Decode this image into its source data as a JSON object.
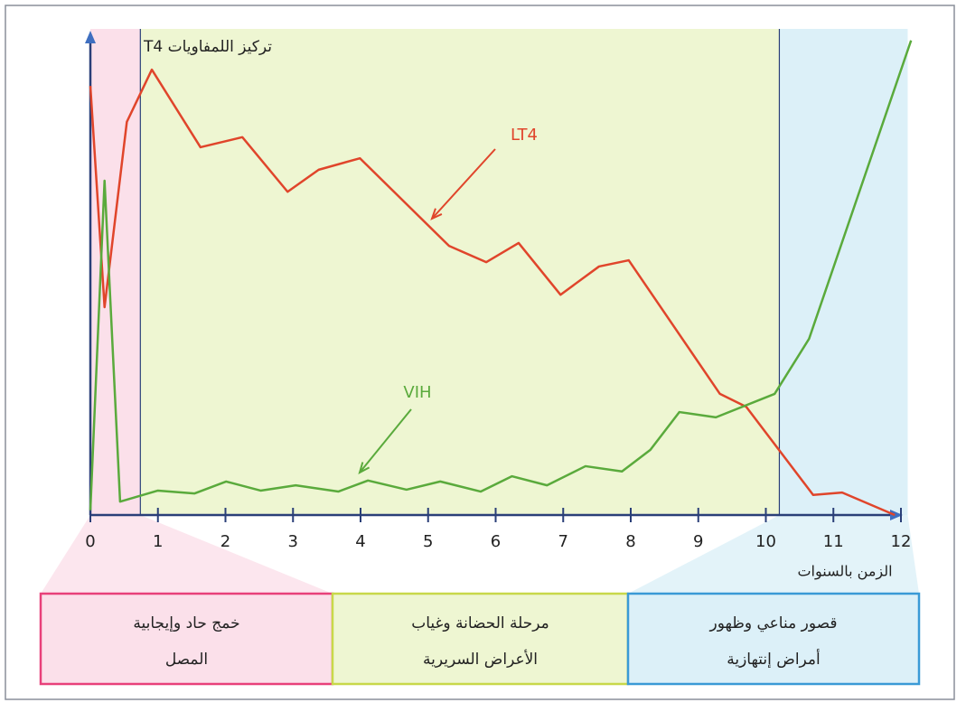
{
  "chart_data": {
    "type": "line",
    "y_label": "تركيز اللمفاويات T4",
    "x_label": "الزمن بالسنوات",
    "xlim": [
      0,
      12
    ],
    "ylim": [
      0,
      100
    ],
    "xticks": [
      0,
      1,
      2,
      3,
      4,
      5,
      6,
      7,
      8,
      9,
      10,
      11,
      12
    ],
    "series": [
      {
        "name": "LT4",
        "color": "#e0452b",
        "x": [
          0,
          0.21,
          0.54,
          0.91,
          1.63,
          2.25,
          2.92,
          3.38,
          3.99,
          5.31,
          5.86,
          6.34,
          6.96,
          7.53,
          7.97,
          9.32,
          9.71,
          10.7,
          11.13,
          11.91
        ],
        "values": [
          89.6,
          43.4,
          82.1,
          93.0,
          76.8,
          78.9,
          67.5,
          72.1,
          74.5,
          56.2,
          52.8,
          56.8,
          46.0,
          51.9,
          53.2,
          25.3,
          22.6,
          4.2,
          4.7,
          0
        ]
      },
      {
        "name": "VIH",
        "color": "#5aaa3c",
        "x": [
          0,
          0.21,
          0.44,
          1.0,
          1.54,
          2.01,
          2.52,
          3.04,
          3.67,
          4.11,
          4.68,
          5.18,
          5.78,
          6.24,
          6.76,
          7.33,
          7.87,
          8.29,
          8.72,
          9.26,
          10.13,
          10.64,
          12.15
        ],
        "values": [
          1,
          69.8,
          2.8,
          5.1,
          4.5,
          7.0,
          5.1,
          6.2,
          4.9,
          7.2,
          5.3,
          7.0,
          4.9,
          8.1,
          6.2,
          10.2,
          9.1,
          13.6,
          21.5,
          20.4,
          25.3,
          36.8,
          99.1
        ]
      }
    ],
    "phases": [
      {
        "lines": [
          "خمج حاد وإيجابية",
          "المصل"
        ],
        "start": 0,
        "end": 0.74,
        "color": "#e8407a",
        "fill": "#fbe0ea"
      },
      {
        "lines": [
          "مرحلة الحضانة وغياب",
          "الأعراض السريرية"
        ],
        "start": 0.74,
        "end": 10.2,
        "color": "#c8d84a",
        "fill": "#eef6d2"
      },
      {
        "lines": [
          "قصور مناعي وظهور",
          "أمراض إنتهازية"
        ],
        "start": 10.2,
        "end": 12.1,
        "color": "#3a9ad6",
        "fill": "#dcf0f8"
      }
    ]
  }
}
